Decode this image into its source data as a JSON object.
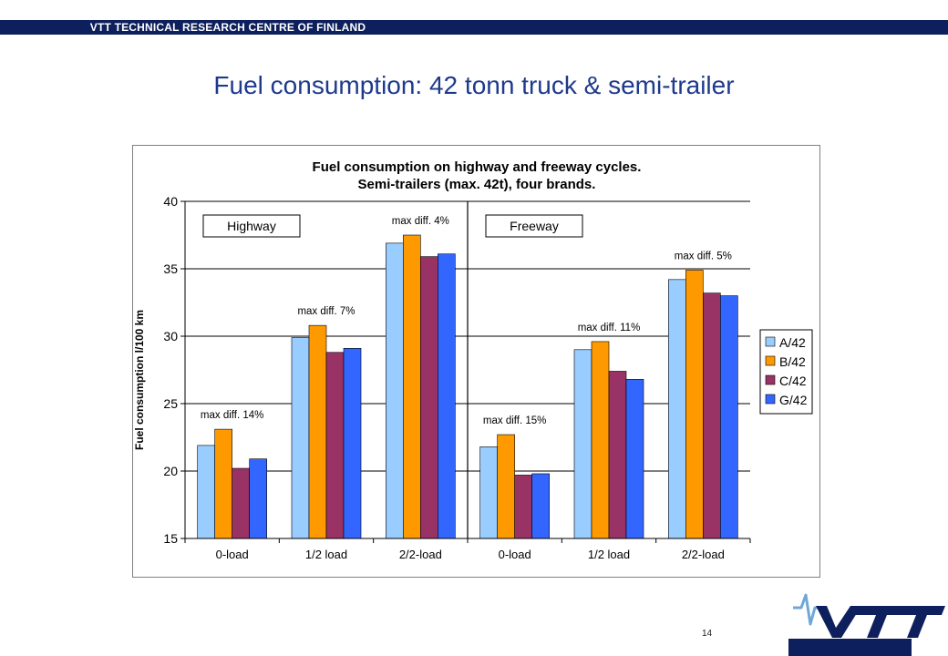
{
  "header": {
    "org": "VTT TECHNICAL RESEARCH CENTRE OF FINLAND"
  },
  "slide": {
    "title": "Fuel consumption: 42 tonn truck & semi-trailer",
    "page_number": "14"
  },
  "colors": {
    "A": "#99ccff",
    "B": "#ff9900",
    "C": "#993366",
    "G": "#3366ff",
    "navy": "#0d1f5c",
    "title": "#1f3a8c"
  },
  "chart_data": {
    "type": "bar",
    "title": "Fuel consumption on highway and freeway cycles.",
    "subtitle": "Semi-trailers (max. 42t), four brands.",
    "ylabel": "Fuel consumption l/100 km",
    "xlabel": "",
    "ylim": [
      15,
      40
    ],
    "yticks": [
      "15",
      "20",
      "25",
      "30",
      "35",
      "40"
    ],
    "grid": true,
    "legend": "right",
    "groups": [
      "Highway",
      "Freeway"
    ],
    "categories": [
      "0-load",
      "1/2 load",
      "2/2-load",
      "0-load",
      "1/2 load",
      "2/2-load"
    ],
    "series": [
      {
        "name": "A/42",
        "color": "#99ccff",
        "values": [
          21.9,
          29.9,
          36.9,
          21.8,
          29.0,
          34.2
        ]
      },
      {
        "name": "B/42",
        "color": "#ff9900",
        "values": [
          23.1,
          30.8,
          37.5,
          22.7,
          29.6,
          34.9
        ]
      },
      {
        "name": "C/42",
        "color": "#993366",
        "values": [
          20.2,
          28.8,
          35.9,
          19.7,
          27.4,
          33.2
        ]
      },
      {
        "name": "G/42",
        "color": "#3366ff",
        "values": [
          20.9,
          29.1,
          36.1,
          19.8,
          26.8,
          33.0
        ]
      }
    ],
    "annotations": [
      "max diff. 14%",
      "max diff. 7%",
      "max diff. 4%",
      "max diff. 15%",
      "max diff. 11%",
      "max diff. 5%"
    ]
  }
}
